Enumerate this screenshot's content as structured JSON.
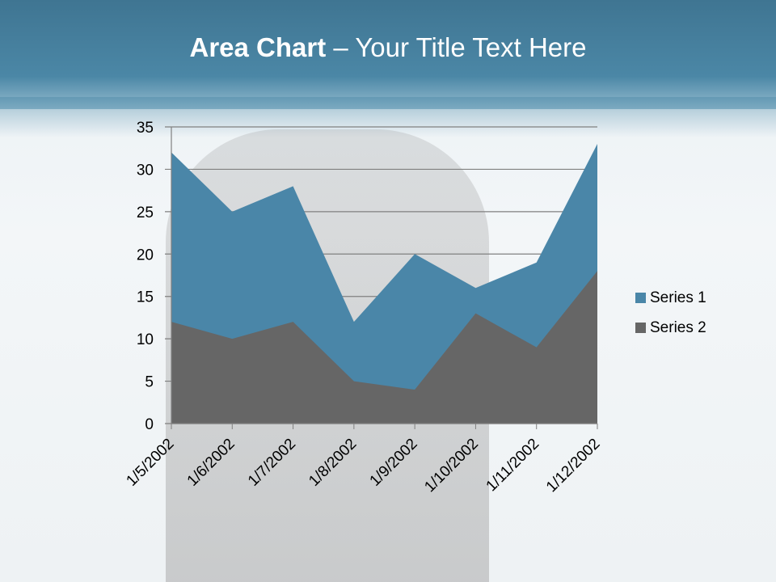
{
  "slide": {
    "title_bold": "Area Chart",
    "title_rest": " – Your Title Text Here"
  },
  "chart_data": {
    "type": "area",
    "title": "",
    "xlabel": "",
    "ylabel": "",
    "categories": [
      "1/5/2002",
      "1/6/2002",
      "1/7/2002",
      "1/8/2002",
      "1/9/2002",
      "1/10/2002",
      "1/11/2002",
      "1/12/2002"
    ],
    "series": [
      {
        "name": "Series 1",
        "color": "#4a86a8",
        "values": [
          32,
          25,
          28,
          12,
          20,
          16,
          19,
          33
        ]
      },
      {
        "name": "Series 2",
        "color": "#666666",
        "values": [
          12,
          10,
          12,
          5,
          4,
          13,
          9,
          18
        ]
      }
    ],
    "ylim": [
      0,
      35
    ],
    "yticks": [
      0,
      5,
      10,
      15,
      20,
      25,
      30,
      35
    ],
    "grid": true,
    "legend": "right"
  }
}
